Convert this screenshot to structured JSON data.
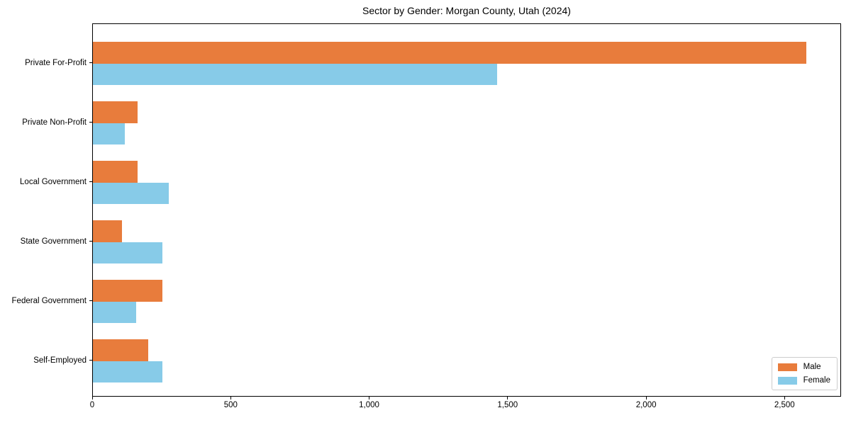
{
  "chart_data": {
    "type": "bar",
    "orientation": "horizontal",
    "title": "Sector by Gender: Morgan County, Utah (2024)",
    "categories": [
      "Private For-Profit",
      "Private Non-Profit",
      "Local Government",
      "State Government",
      "Federal Government",
      "Self-Employed"
    ],
    "series": [
      {
        "name": "Male",
        "color": "#e87c3c",
        "values": [
          2575,
          160,
          160,
          105,
          250,
          200
        ]
      },
      {
        "name": "Female",
        "color": "#87cbe8",
        "values": [
          1460,
          115,
          275,
          250,
          155,
          250
        ]
      }
    ],
    "xlabel": "",
    "ylabel": "",
    "xlim": [
      0,
      2704
    ],
    "xticks": [
      0,
      500,
      1000,
      1500,
      2000,
      2500
    ],
    "xtick_labels": [
      "0",
      "500",
      "1,000",
      "1,500",
      "2,000",
      "2,500"
    ],
    "grid": false,
    "legend_position": "lower right"
  }
}
